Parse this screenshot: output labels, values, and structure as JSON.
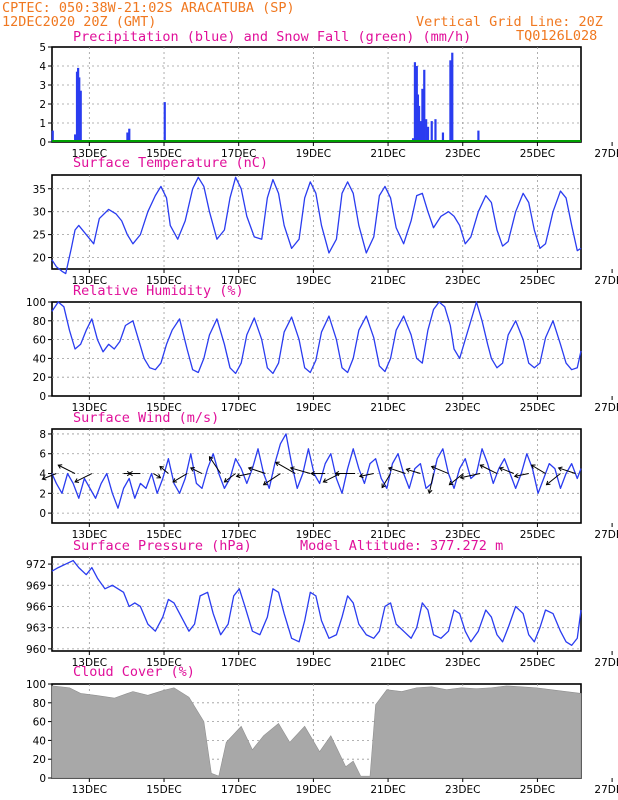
{
  "header": {
    "line1": "CPTEC:   050:38W-21:02S   ARACATUBA (SP)",
    "line2_left": "12DEC2020 20Z (GMT)",
    "line2_right": "Vertical Grid Line: 20Z",
    "line3_right": "TQ0126L028"
  },
  "colors": {
    "header": "#f07820",
    "title": "#e0109a",
    "line": "#2a3cf0",
    "snow": "#00a000",
    "cloud": "#a8a8a8",
    "grid": "#9a9a9a"
  },
  "x_axis": {
    "tick_labels": [
      "13DEC",
      "15DEC",
      "17DEC",
      "19DEC",
      "21DEC",
      "23DEC",
      "25DEC",
      "27DEC"
    ],
    "range_days": [
      12.833,
      27.0
    ]
  },
  "chart_data": [
    {
      "id": "precip",
      "type": "bar",
      "title": "Precipitation (blue) and Snow Fall (green) (mm/h)",
      "ylim": [
        0,
        5
      ],
      "yticks": [
        0,
        1,
        2,
        3,
        4,
        5
      ],
      "series": [
        {
          "name": "Precipitation",
          "color": "blue",
          "x": [
            12.85,
            13.45,
            13.5,
            13.53,
            13.56,
            13.6,
            14.85,
            14.9,
            15.85,
            16.3,
            22.5,
            22.55,
            22.6,
            22.63,
            22.66,
            22.7,
            22.75,
            22.8,
            22.85,
            22.9,
            23.0,
            23.1,
            23.3,
            23.5,
            23.55,
            24.25
          ],
          "values": [
            0.6,
            0.4,
            3.7,
            3.9,
            3.4,
            2.7,
            0.5,
            0.7,
            2.1,
            0.1,
            0.2,
            4.2,
            4.0,
            2.5,
            1.9,
            1.1,
            2.8,
            3.8,
            1.2,
            0.8,
            1.1,
            1.2,
            0.5,
            4.3,
            4.7,
            0.6
          ]
        },
        {
          "name": "Snow Fall",
          "color": "green",
          "x": [
            12.833,
            27.0
          ],
          "values": [
            0,
            0
          ]
        }
      ]
    },
    {
      "id": "temp",
      "type": "line",
      "title": "Surface Temperature (nC)",
      "ylim": [
        17.5,
        38
      ],
      "yticks": [
        20,
        25,
        30,
        35
      ],
      "x": [
        12.83,
        12.95,
        13.1,
        13.2,
        13.35,
        13.45,
        13.55,
        13.7,
        13.85,
        13.95,
        14.1,
        14.35,
        14.55,
        14.7,
        14.85,
        15.0,
        15.2,
        15.4,
        15.6,
        15.75,
        15.9,
        16.0,
        16.2,
        16.4,
        16.6,
        16.75,
        16.9,
        17.05,
        17.25,
        17.45,
        17.6,
        17.75,
        17.9,
        18.05,
        18.25,
        18.45,
        18.6,
        18.75,
        18.9,
        19.05,
        19.25,
        19.45,
        19.6,
        19.75,
        19.9,
        20.05,
        20.25,
        20.45,
        20.6,
        20.75,
        20.9,
        21.05,
        21.25,
        21.45,
        21.6,
        21.75,
        21.9,
        22.05,
        22.25,
        22.45,
        22.6,
        22.75,
        22.9,
        23.05,
        23.25,
        23.45,
        23.6,
        23.75,
        23.9,
        24.05,
        24.25,
        24.45,
        24.6,
        24.75,
        24.9,
        25.05,
        25.25,
        25.45,
        25.6,
        25.75,
        25.9,
        26.05,
        26.25,
        26.45,
        26.6,
        26.75,
        26.9,
        27.0
      ],
      "values": [
        19.5,
        18.0,
        17.0,
        16.5,
        22.0,
        26.0,
        27.0,
        25.5,
        24.0,
        23.0,
        28.5,
        30.5,
        29.5,
        28.0,
        25.0,
        23.0,
        25.0,
        30.0,
        33.5,
        35.5,
        33.0,
        27.0,
        24.0,
        28.0,
        35.0,
        37.5,
        35.5,
        30.0,
        24.0,
        26.0,
        33.0,
        37.5,
        35.0,
        29.0,
        24.5,
        24.0,
        33.0,
        37.0,
        34.0,
        27.0,
        22.0,
        24.0,
        33.0,
        36.5,
        34.0,
        27.0,
        21.0,
        24.0,
        34.0,
        36.5,
        34.0,
        27.0,
        21.0,
        24.5,
        33.5,
        35.5,
        33.0,
        26.5,
        23.0,
        28.0,
        33.5,
        34.0,
        30.0,
        26.5,
        29.0,
        30.0,
        29.0,
        27.0,
        23.0,
        24.5,
        30.0,
        33.5,
        32.0,
        26.0,
        22.5,
        23.5,
        30.0,
        34.0,
        32.0,
        26.0,
        22.0,
        23.0,
        30.0,
        34.5,
        33.0,
        27.0,
        21.5,
        22.0
      ]
    },
    {
      "id": "rh",
      "type": "line",
      "title": "Relative Humidity (%)",
      "ylim": [
        0,
        100
      ],
      "yticks": [
        0,
        20,
        40,
        60,
        80,
        100
      ],
      "x": [
        12.83,
        13.0,
        13.15,
        13.3,
        13.45,
        13.6,
        13.75,
        13.9,
        14.05,
        14.2,
        14.35,
        14.5,
        14.65,
        14.8,
        15.0,
        15.15,
        15.3,
        15.45,
        15.6,
        15.75,
        15.9,
        16.05,
        16.25,
        16.45,
        16.6,
        16.75,
        16.9,
        17.05,
        17.25,
        17.45,
        17.6,
        17.75,
        17.9,
        18.05,
        18.25,
        18.45,
        18.6,
        18.75,
        18.9,
        19.05,
        19.25,
        19.45,
        19.6,
        19.75,
        19.9,
        20.05,
        20.25,
        20.45,
        20.6,
        20.75,
        20.9,
        21.05,
        21.25,
        21.45,
        21.6,
        21.75,
        21.9,
        22.05,
        22.25,
        22.45,
        22.6,
        22.75,
        22.9,
        23.05,
        23.2,
        23.35,
        23.5,
        23.6,
        23.75,
        23.9,
        24.05,
        24.2,
        24.35,
        24.5,
        24.6,
        24.75,
        24.9,
        25.05,
        25.25,
        25.45,
        25.6,
        25.75,
        25.9,
        26.05,
        26.25,
        26.45,
        26.6,
        26.75,
        26.9,
        27.0
      ],
      "values": [
        90,
        100,
        95,
        70,
        50,
        55,
        70,
        82,
        60,
        47,
        55,
        50,
        58,
        75,
        80,
        60,
        40,
        30,
        28,
        35,
        55,
        70,
        82,
        50,
        28,
        25,
        40,
        65,
        82,
        55,
        30,
        24,
        35,
        65,
        83,
        60,
        30,
        24,
        35,
        68,
        84,
        60,
        30,
        25,
        38,
        68,
        85,
        60,
        30,
        25,
        40,
        70,
        85,
        62,
        32,
        26,
        40,
        70,
        85,
        65,
        40,
        35,
        70,
        92,
        100,
        95,
        75,
        50,
        40,
        60,
        80,
        100,
        80,
        55,
        40,
        30,
        35,
        65,
        80,
        60,
        35,
        30,
        35,
        62,
        80,
        55,
        35,
        28,
        30,
        48
      ]
    },
    {
      "id": "wind",
      "type": "line",
      "title": "Surface Wind (m/s)",
      "ylim": [
        -1,
        8.5
      ],
      "yticks": [
        0,
        2,
        4,
        6,
        8
      ],
      "x": [
        12.83,
        12.95,
        13.1,
        13.25,
        13.4,
        13.55,
        13.7,
        13.85,
        14.0,
        14.15,
        14.3,
        14.45,
        14.6,
        14.75,
        14.9,
        15.05,
        15.2,
        15.35,
        15.5,
        15.65,
        15.8,
        15.95,
        16.1,
        16.25,
        16.4,
        16.55,
        16.7,
        16.85,
        17.0,
        17.15,
        17.3,
        17.45,
        17.6,
        17.75,
        17.9,
        18.05,
        18.2,
        18.35,
        18.5,
        18.65,
        18.8,
        18.95,
        19.1,
        19.25,
        19.4,
        19.55,
        19.7,
        19.85,
        20.0,
        20.15,
        20.3,
        20.45,
        20.6,
        20.75,
        20.9,
        21.05,
        21.2,
        21.35,
        21.5,
        21.65,
        21.8,
        21.95,
        22.1,
        22.25,
        22.4,
        22.55,
        22.7,
        22.85,
        23.0,
        23.15,
        23.3,
        23.45,
        23.6,
        23.75,
        23.9,
        24.05,
        24.2,
        24.35,
        24.5,
        24.65,
        24.8,
        24.95,
        25.1,
        25.25,
        25.4,
        25.55,
        25.7,
        25.85,
        26.0,
        26.15,
        26.3,
        26.45,
        26.6,
        26.75,
        26.9,
        27.0
      ],
      "values": [
        4.0,
        3.0,
        2.0,
        4.0,
        3.0,
        1.5,
        3.5,
        2.5,
        1.5,
        3.0,
        4.0,
        2.0,
        0.5,
        2.5,
        3.5,
        1.5,
        3.0,
        2.5,
        4.0,
        2.0,
        3.5,
        5.5,
        3.0,
        2.0,
        3.5,
        6.0,
        3.0,
        2.5,
        4.5,
        6.0,
        4.0,
        2.5,
        3.5,
        5.5,
        4.5,
        3.0,
        4.5,
        6.5,
        4.0,
        2.5,
        5.0,
        7.0,
        8.0,
        5.0,
        2.5,
        4.0,
        6.5,
        4.0,
        3.0,
        5.0,
        6.0,
        3.5,
        2.0,
        4.5,
        6.5,
        4.5,
        3.0,
        5.0,
        5.5,
        3.5,
        2.5,
        5.0,
        6.0,
        4.0,
        2.5,
        4.5,
        5.0,
        2.5,
        3.0,
        5.5,
        6.5,
        4.0,
        2.5,
        4.5,
        5.5,
        3.5,
        4.0,
        6.5,
        5.0,
        3.0,
        4.5,
        5.5,
        4.0,
        2.5,
        4.0,
        6.0,
        4.5,
        2.0,
        3.5,
        5.0,
        4.5,
        2.5,
        4.0,
        5.0,
        3.5,
        4.5
      ],
      "vectors": [
        {
          "x": 12.95,
          "u": -1.0,
          "v": -0.4
        },
        {
          "x": 13.45,
          "u": -1.2,
          "v": 0.6
        },
        {
          "x": 13.9,
          "u": -1.2,
          "v": -0.6
        },
        {
          "x": 14.75,
          "u": 0.5,
          "v": 0.0
        },
        {
          "x": 15.2,
          "u": -0.8,
          "v": 0.0
        },
        {
          "x": 15.55,
          "u": 0.5,
          "v": -0.3
        },
        {
          "x": 15.95,
          "u": -0.6,
          "v": 0.5
        },
        {
          "x": 16.45,
          "u": -1.0,
          "v": -0.6
        },
        {
          "x": 16.85,
          "u": -0.8,
          "v": 0.4
        },
        {
          "x": 17.35,
          "u": -0.8,
          "v": 1.2
        },
        {
          "x": 17.75,
          "u": -0.8,
          "v": -0.6
        },
        {
          "x": 18.15,
          "u": -1.0,
          "v": -0.2
        },
        {
          "x": 18.55,
          "u": -1.2,
          "v": 0.4
        },
        {
          "x": 18.95,
          "u": -1.2,
          "v": -0.8
        },
        {
          "x": 19.35,
          "u": -1.4,
          "v": 0.8
        },
        {
          "x": 19.75,
          "u": -1.4,
          "v": 0.4
        },
        {
          "x": 20.15,
          "u": -1.0,
          "v": 0.0
        },
        {
          "x": 20.55,
          "u": -1.2,
          "v": -0.6
        },
        {
          "x": 20.95,
          "u": -1.4,
          "v": 0.0
        },
        {
          "x": 21.45,
          "u": -1.0,
          "v": -0.2
        },
        {
          "x": 21.9,
          "u": -0.6,
          "v": -1.0
        },
        {
          "x": 22.3,
          "u": -1.2,
          "v": 0.4
        },
        {
          "x": 22.7,
          "u": -1.0,
          "v": 0.3
        },
        {
          "x": 23.05,
          "u": -0.3,
          "v": -1.4
        },
        {
          "x": 23.45,
          "u": -1.2,
          "v": 0.5
        },
        {
          "x": 23.85,
          "u": -1.0,
          "v": -0.8
        },
        {
          "x": 24.3,
          "u": -1.4,
          "v": -0.3
        },
        {
          "x": 24.75,
          "u": -1.2,
          "v": 0.6
        },
        {
          "x": 25.2,
          "u": -1.0,
          "v": 0.4
        },
        {
          "x": 25.6,
          "u": -1.0,
          "v": -0.2
        },
        {
          "x": 26.05,
          "u": -1.0,
          "v": 0.6
        },
        {
          "x": 26.45,
          "u": -1.0,
          "v": -0.8
        },
        {
          "x": 26.85,
          "u": -1.2,
          "v": 0.4
        }
      ]
    },
    {
      "id": "pres",
      "type": "line",
      "title": "Surface Pressure (hPa)",
      "annotation": "Model Altitude: 377.272 m",
      "ylim": [
        959.7,
        973
      ],
      "yticks": [
        960,
        963,
        966,
        969,
        972
      ],
      "x": [
        12.83,
        13.0,
        13.2,
        13.4,
        13.55,
        13.75,
        13.9,
        14.05,
        14.25,
        14.45,
        14.6,
        14.75,
        14.9,
        15.05,
        15.2,
        15.4,
        15.6,
        15.8,
        15.95,
        16.1,
        16.3,
        16.5,
        16.65,
        16.8,
        17.0,
        17.15,
        17.35,
        17.55,
        17.7,
        17.85,
        18.0,
        18.2,
        18.4,
        18.6,
        18.75,
        18.9,
        19.05,
        19.25,
        19.45,
        19.6,
        19.75,
        19.9,
        20.05,
        20.25,
        20.45,
        20.6,
        20.75,
        20.9,
        21.05,
        21.25,
        21.45,
        21.6,
        21.75,
        21.9,
        22.05,
        22.25,
        22.45,
        22.6,
        22.75,
        22.9,
        23.05,
        23.25,
        23.45,
        23.6,
        23.75,
        23.9,
        24.05,
        24.25,
        24.45,
        24.6,
        24.75,
        24.9,
        25.05,
        25.25,
        25.45,
        25.6,
        25.75,
        25.9,
        26.05,
        26.25,
        26.45,
        26.6,
        26.75,
        26.9,
        27.0
      ],
      "values": [
        971.0,
        971.5,
        972.0,
        972.5,
        971.5,
        970.5,
        971.5,
        970.0,
        968.5,
        969.0,
        968.5,
        968.0,
        966.0,
        966.5,
        966.0,
        963.5,
        962.5,
        964.5,
        967.0,
        966.5,
        964.5,
        962.5,
        963.5,
        967.5,
        968.0,
        965.0,
        962.0,
        963.5,
        967.5,
        968.5,
        966.0,
        962.5,
        962.0,
        964.5,
        968.5,
        968.0,
        965.0,
        961.5,
        961.0,
        964.0,
        968.0,
        967.5,
        964.0,
        961.5,
        962.0,
        964.5,
        967.5,
        966.5,
        963.5,
        962.0,
        961.5,
        962.5,
        966.0,
        966.5,
        963.5,
        962.5,
        961.5,
        963.0,
        966.5,
        965.5,
        962.0,
        961.5,
        962.5,
        965.5,
        965.0,
        962.5,
        961.0,
        962.5,
        965.5,
        964.5,
        962.0,
        961.0,
        963.0,
        966.0,
        965.0,
        962.0,
        961.0,
        963.0,
        965.5,
        965.0,
        962.5,
        961.0,
        960.5,
        961.5,
        965.5
      ]
    },
    {
      "id": "cloud",
      "type": "area",
      "title": "Cloud Cover (%)",
      "ylim": [
        0,
        100
      ],
      "yticks": [
        0,
        20,
        40,
        60,
        80,
        100
      ],
      "x": [
        12.83,
        13.3,
        13.6,
        14.0,
        14.5,
        15.0,
        15.4,
        15.8,
        16.1,
        16.5,
        16.9,
        17.1,
        17.3,
        17.5,
        17.9,
        18.2,
        18.5,
        18.9,
        19.2,
        19.6,
        20.0,
        20.3,
        20.7,
        20.9,
        21.1,
        21.35,
        21.5,
        21.8,
        22.2,
        22.6,
        23.0,
        23.4,
        23.8,
        24.2,
        24.6,
        25.0,
        25.4,
        25.8,
        26.2,
        26.6,
        27.0
      ],
      "values": [
        98,
        96,
        90,
        88,
        85,
        92,
        88,
        93,
        96,
        86,
        60,
        5,
        2,
        38,
        55,
        30,
        45,
        58,
        38,
        55,
        28,
        45,
        12,
        18,
        2,
        2,
        78,
        94,
        92,
        96,
        97,
        94,
        96,
        95,
        96,
        98,
        97,
        96,
        94,
        92,
        90
      ]
    }
  ]
}
